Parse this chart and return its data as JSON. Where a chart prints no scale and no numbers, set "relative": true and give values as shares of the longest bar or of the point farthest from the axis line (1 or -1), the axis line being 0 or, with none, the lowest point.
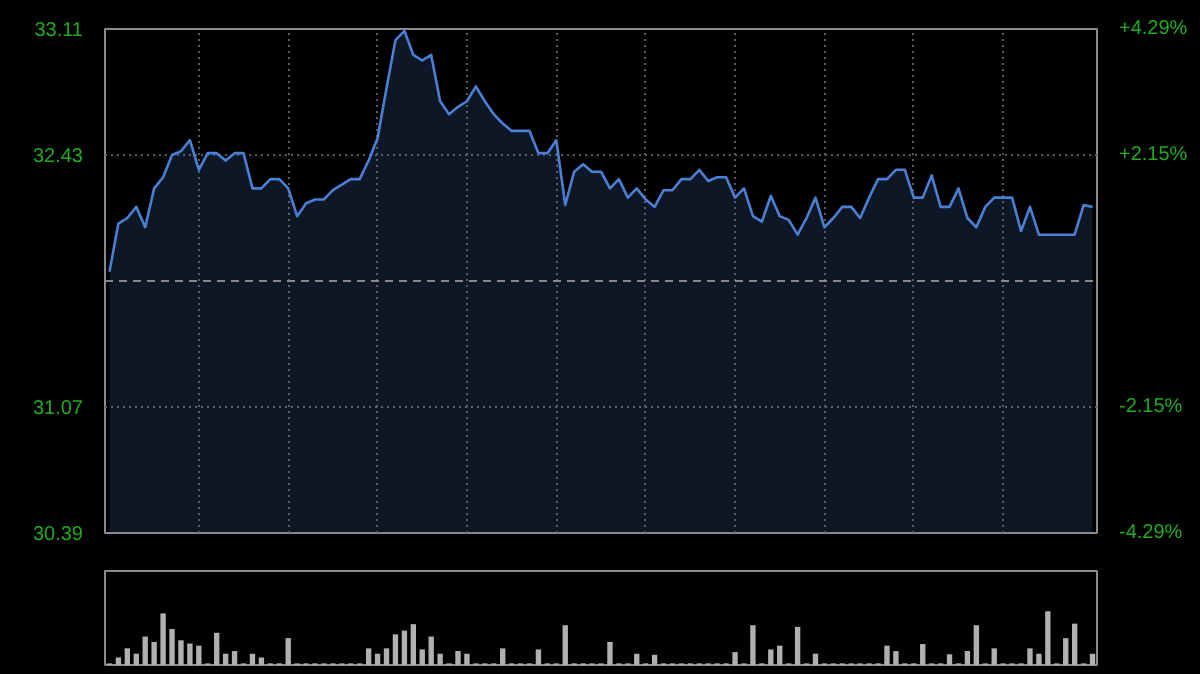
{
  "chart_data": [
    {
      "type": "area",
      "categories": [
        null,
        null,
        null,
        null,
        null,
        null,
        null,
        null,
        null,
        null,
        null,
        null,
        null,
        null,
        null,
        null,
        null,
        null,
        null,
        null,
        null,
        null,
        null,
        null,
        null,
        null,
        null,
        null,
        null,
        null,
        null,
        null,
        null,
        null,
        null,
        null,
        null,
        null,
        null,
        null,
        null,
        null,
        null,
        null,
        null,
        null,
        null,
        null,
        null,
        null,
        null,
        null,
        null,
        null,
        null,
        null,
        null,
        null,
        null,
        null,
        null,
        null,
        null,
        null,
        null,
        null,
        null,
        null,
        null,
        null,
        null,
        null,
        null,
        null,
        null,
        null,
        null,
        null,
        null,
        null,
        null,
        null,
        null,
        null,
        null,
        null,
        null,
        null,
        null,
        null,
        null,
        null,
        null,
        null,
        null,
        null,
        null,
        null,
        null,
        null,
        null,
        null,
        null,
        null,
        null,
        null,
        null,
        null,
        null,
        null,
        null
      ],
      "series": [
        {
          "color": "#4a7fd4",
          "values": [
            31.8,
            32.06,
            32.09,
            32.15,
            32.04,
            32.25,
            32.31,
            32.43,
            32.45,
            32.51,
            32.35,
            32.44,
            32.44,
            32.4,
            32.44,
            32.44,
            32.25,
            32.25,
            32.3,
            32.3,
            32.25,
            32.1,
            32.17,
            32.19,
            32.19,
            32.24,
            32.27,
            32.3,
            32.3,
            32.4,
            32.52,
            32.79,
            33.05,
            33.1,
            32.97,
            32.94,
            32.97,
            32.72,
            32.65,
            32.69,
            32.72,
            32.8,
            32.72,
            32.65,
            32.6,
            32.56,
            32.56,
            32.56,
            32.44,
            32.44,
            32.51,
            32.16,
            32.34,
            32.38,
            32.34,
            32.34,
            32.25,
            32.3,
            32.2,
            32.25,
            32.19,
            32.15,
            32.24,
            32.24,
            32.3,
            32.3,
            32.35,
            32.29,
            32.31,
            32.31,
            32.2,
            32.25,
            32.1,
            32.07,
            32.21,
            32.1,
            32.08,
            32.0,
            32.09,
            32.2,
            32.04,
            32.09,
            32.15,
            32.15,
            32.09,
            32.2,
            32.3,
            32.3,
            32.35,
            32.35,
            32.2,
            32.2,
            32.32,
            32.15,
            32.15,
            32.25,
            32.09,
            32.04,
            32.15,
            32.2,
            32.2,
            32.2,
            32.02,
            32.15,
            32.0,
            32.0,
            32.0,
            32.0,
            32.0,
            32.16,
            32.15
          ]
        }
      ],
      "ylim": [
        30.39,
        33.11
      ],
      "yticks": [
        30.39,
        31.07,
        32.43,
        33.11
      ],
      "y2lim": [
        -4.29,
        4.29
      ],
      "y2ticks": [
        {
          "value": -4.29,
          "label": "-4.29%"
        },
        {
          "value": -2.15,
          "label": "-2.15%"
        },
        {
          "value": 2.15,
          "label": "+2.15%"
        },
        {
          "value": 4.29,
          "label": "+4.29%"
        }
      ],
      "ref_lines": [
        {
          "axis": "y",
          "value": 31.75,
          "label": null,
          "line_style": "dashed",
          "color": "#888888"
        }
      ],
      "grid": true,
      "tick_labels": "y"
    },
    {
      "type": "bar",
      "relative": true,
      "color": "#b0b0b0",
      "tick_labels": false,
      "categories": [
        null,
        null,
        null,
        null,
        null,
        null,
        null,
        null,
        null,
        null,
        null,
        null,
        null,
        null,
        null,
        null,
        null,
        null,
        null,
        null,
        null,
        null,
        null,
        null,
        null,
        null,
        null,
        null,
        null,
        null,
        null,
        null,
        null,
        null,
        null,
        null,
        null,
        null,
        null,
        null,
        null,
        null,
        null,
        null,
        null,
        null,
        null,
        null,
        null,
        null,
        null,
        null,
        null,
        null,
        null,
        null,
        null,
        null,
        null,
        null,
        null,
        null,
        null,
        null,
        null,
        null,
        null,
        null,
        null,
        null,
        null,
        null,
        null,
        null,
        null,
        null,
        null,
        null,
        null,
        null,
        null,
        null,
        null,
        null,
        null,
        null,
        null,
        null,
        null,
        null,
        null,
        null,
        null,
        null,
        null,
        null,
        null,
        null,
        null,
        null,
        null,
        null,
        null,
        null,
        null,
        null,
        null,
        null,
        null,
        null,
        null
      ],
      "values": [
        0.03,
        0.14,
        0.31,
        0.21,
        0.53,
        0.43,
        0.96,
        0.67,
        0.46,
        0.4,
        0.36,
        0.03,
        0.6,
        0.21,
        0.26,
        0.03,
        0.21,
        0.14,
        0.03,
        0.03,
        0.5,
        0.03,
        0.03,
        0.03,
        0.03,
        0.03,
        0.03,
        0.03,
        0.03,
        0.31,
        0.21,
        0.31,
        0.57,
        0.64,
        0.76,
        0.29,
        0.53,
        0.21,
        0.03,
        0.26,
        0.21,
        0.03,
        0.03,
        0.03,
        0.31,
        0.03,
        0.03,
        0.03,
        0.29,
        0.03,
        0.03,
        0.74,
        0.03,
        0.03,
        0.03,
        0.03,
        0.43,
        0.03,
        0.03,
        0.21,
        0.03,
        0.19,
        0.03,
        0.03,
        0.03,
        0.03,
        0.03,
        0.03,
        0.03,
        0.03,
        0.24,
        0.03,
        0.74,
        0.03,
        0.29,
        0.36,
        0.03,
        0.71,
        0.03,
        0.21,
        0.03,
        0.03,
        0.03,
        0.03,
        0.03,
        0.03,
        0.03,
        0.36,
        0.26,
        0.03,
        0.03,
        0.39,
        0.03,
        0.03,
        0.2,
        0.03,
        0.26,
        0.74,
        0.03,
        0.31,
        0.03,
        0.03,
        0.03,
        0.31,
        0.21,
        1,
        0.03,
        0.5,
        0.77,
        0.03,
        0.21
      ]
    }
  ]
}
